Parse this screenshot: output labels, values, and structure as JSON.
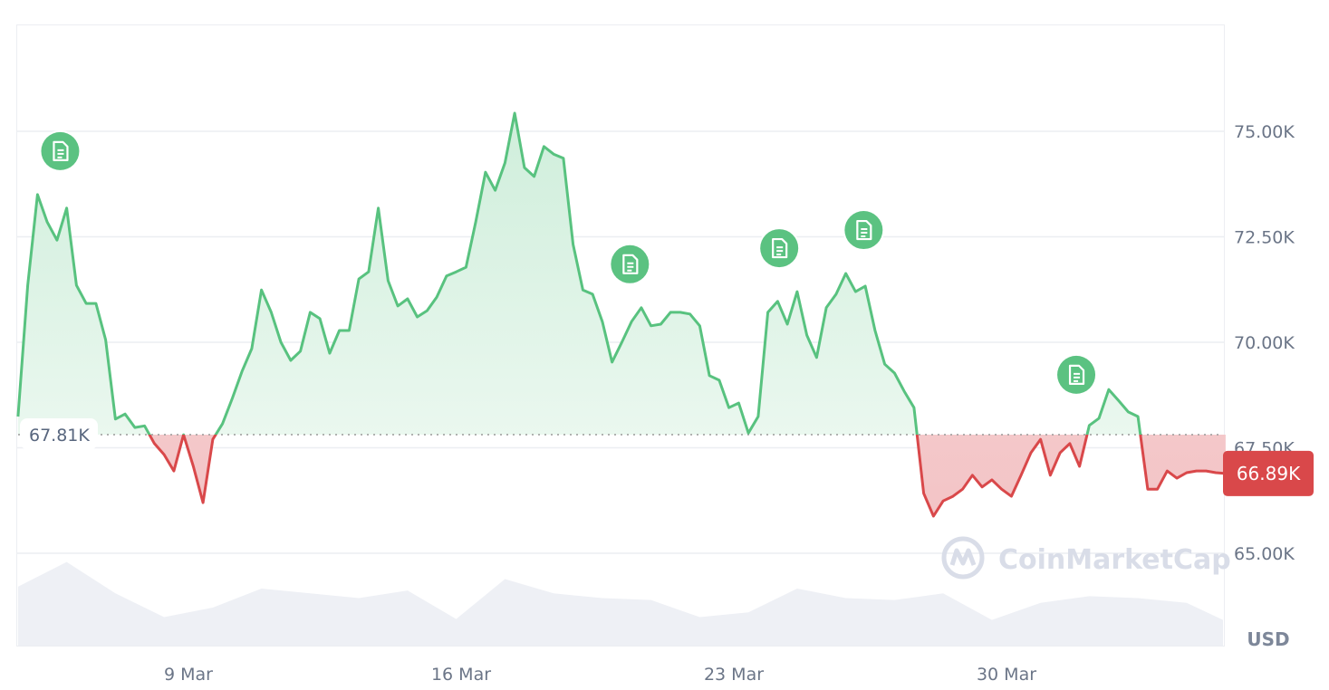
{
  "chart_data": {
    "type": "area",
    "currency_label": "USD",
    "baseline": {
      "value": 67810,
      "label": "67.81K"
    },
    "current": {
      "value": 66890,
      "label": "66.89K"
    },
    "ylim": [
      63200,
      77500
    ],
    "y_ticks": [
      {
        "value": 75000,
        "label": "75.00K"
      },
      {
        "value": 72500,
        "label": "72.50K"
      },
      {
        "value": 70000,
        "label": "70.00K"
      },
      {
        "value": 67500,
        "label": "67.50K"
      },
      {
        "value": 65000,
        "label": "65.00K"
      }
    ],
    "x_ticks": [
      {
        "date": "Mar 9",
        "label": "9 Mar"
      },
      {
        "date": "Mar 16",
        "label": "16 Mar"
      },
      {
        "date": "Mar 23",
        "label": "23 Mar"
      },
      {
        "date": "Mar 30",
        "label": "30 Mar"
      }
    ],
    "grid": true,
    "series": {
      "start": "Mar 4 15:00",
      "interval_hours": 6,
      "values": [
        68240,
        71350,
        73500,
        72850,
        72420,
        73180,
        71350,
        70920,
        70920,
        70060,
        68180,
        68300,
        67980,
        68020,
        67600,
        67340,
        66950,
        67810,
        67060,
        66200,
        67700,
        68070,
        68670,
        69310,
        69850,
        71240,
        70710,
        70000,
        69570,
        69790,
        70710,
        70560,
        69740,
        70280,
        70280,
        71500,
        71670,
        73180,
        71460,
        70860,
        71030,
        70600,
        70750,
        71070,
        71570,
        71670,
        71780,
        72850,
        74030,
        73600,
        74250,
        75430,
        74140,
        73930,
        74640,
        74460,
        74360,
        72320,
        71240,
        71140,
        70490,
        69530,
        70000,
        70490,
        70820,
        70390,
        70430,
        70710,
        70710,
        70670,
        70390,
        69210,
        69100,
        68450,
        68560,
        67850,
        68240,
        70710,
        70970,
        70430,
        71200,
        70170,
        69640,
        70820,
        71140,
        71630,
        71200,
        71330,
        70280,
        69480,
        69270,
        68840,
        68450,
        66420,
        65880,
        66240,
        66350,
        66520,
        66850,
        66570,
        66740,
        66520,
        66350,
        66850,
        67380,
        67700,
        66850,
        67380,
        67600,
        67060,
        68030,
        68200,
        68880,
        68620,
        68350,
        68240,
        66520,
        66520,
        66950,
        66780,
        66910,
        66950,
        66950,
        66910,
        66890
      ]
    },
    "volume": {
      "interval_hours": 30,
      "relative_values": [
        0.62,
        0.88,
        0.55,
        0.3,
        0.4,
        0.6,
        0.55,
        0.5,
        0.58,
        0.28,
        0.7,
        0.55,
        0.5,
        0.48,
        0.3,
        0.35,
        0.6,
        0.5,
        0.48,
        0.55,
        0.27,
        0.45,
        0.52,
        0.5,
        0.45,
        0.27
      ]
    },
    "events": [
      {
        "date": "Mar 5 17:00",
        "icon": "news-document-icon"
      },
      {
        "date": "Mar 20 08:00",
        "icon": "news-document-icon"
      },
      {
        "date": "Mar 24 04:00",
        "icon": "news-document-icon"
      },
      {
        "date": "Mar 26 08:00",
        "icon": "news-document-icon"
      },
      {
        "date": "Mar 31 19:00",
        "icon": "news-document-icon"
      }
    ],
    "colors": {
      "up": "#58c27f",
      "down": "#d9484a",
      "up_fill": "#e3f5ea",
      "down_fill": "#f5d3d4",
      "volume": "#eef0f5",
      "grid": "#eceef2"
    }
  },
  "watermark": "CoinMarketCap"
}
